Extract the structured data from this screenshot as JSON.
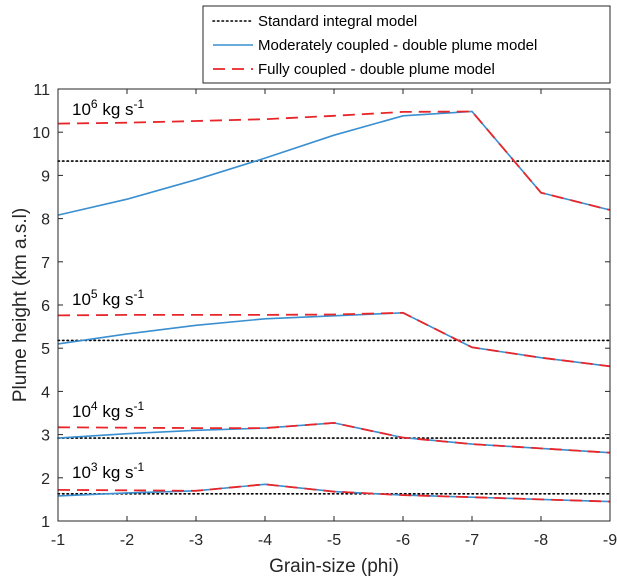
{
  "chart_data": {
    "type": "line",
    "xlabel": "Grain-size (phi)",
    "ylabel": "Plume height (km a.s.l)",
    "x": [
      -1,
      -2,
      -3,
      -4,
      -5,
      -6,
      -7,
      -8,
      -9
    ],
    "xlim": [
      -1,
      -9
    ],
    "ylim": [
      1,
      11
    ],
    "xticks": [
      "-1",
      "-2",
      "-3",
      "-4",
      "-5",
      "-6",
      "-7",
      "-8",
      "-9"
    ],
    "yticks": [
      "1",
      "2",
      "3",
      "4",
      "5",
      "6",
      "7",
      "8",
      "9",
      "10",
      "11"
    ],
    "grid": false,
    "legend_position": "top-right (outside axes)",
    "legend": [
      {
        "label": "Standard integral model",
        "color": "#000000",
        "style": "dotted"
      },
      {
        "label": "Moderately coupled - double plume model",
        "color": "#3a8fd0",
        "style": "solid"
      },
      {
        "label": "Fully coupled - double plume model",
        "color": "#e8262a",
        "style": "dashed"
      }
    ],
    "groups": [
      {
        "annotation": {
          "base": "10",
          "exp": "6",
          "unit": "kg s",
          "unit_exp": "-1"
        },
        "standard": [
          9.33,
          9.33,
          9.33,
          9.33,
          9.33,
          9.33,
          9.33,
          9.33,
          9.33
        ],
        "moderate": [
          8.08,
          8.45,
          8.9,
          9.4,
          9.93,
          10.38,
          10.48,
          8.6,
          8.2
        ],
        "full": [
          10.2,
          10.22,
          10.26,
          10.3,
          10.38,
          10.47,
          10.48,
          8.6,
          8.2
        ]
      },
      {
        "annotation": {
          "base": "10",
          "exp": "5",
          "unit": "kg s",
          "unit_exp": "-1"
        },
        "standard": [
          5.18,
          5.18,
          5.18,
          5.18,
          5.18,
          5.18,
          5.18,
          5.18,
          5.18
        ],
        "moderate": [
          5.1,
          5.33,
          5.53,
          5.68,
          5.75,
          5.82,
          5.02,
          4.78,
          4.58
        ],
        "full": [
          5.76,
          5.77,
          5.77,
          5.77,
          5.78,
          5.82,
          5.02,
          4.78,
          4.58
        ]
      },
      {
        "annotation": {
          "base": "10",
          "exp": "4",
          "unit": "kg s",
          "unit_exp": "-1"
        },
        "standard": [
          2.92,
          2.92,
          2.92,
          2.92,
          2.92,
          2.92,
          2.92,
          2.92,
          2.92
        ],
        "moderate": [
          2.92,
          3.02,
          3.1,
          3.15,
          3.27,
          2.93,
          2.78,
          2.68,
          2.58
        ],
        "full": [
          3.17,
          3.16,
          3.15,
          3.15,
          3.27,
          2.93,
          2.78,
          2.68,
          2.58
        ]
      },
      {
        "annotation": {
          "base": "10",
          "exp": "3",
          "unit": "kg s",
          "unit_exp": "-1"
        },
        "standard": [
          1.63,
          1.63,
          1.63,
          1.63,
          1.63,
          1.63,
          1.63,
          1.63,
          1.63
        ],
        "moderate": [
          1.58,
          1.65,
          1.7,
          1.85,
          1.68,
          1.6,
          1.55,
          1.5,
          1.45
        ],
        "full": [
          1.72,
          1.71,
          1.7,
          1.85,
          1.68,
          1.6,
          1.55,
          1.5,
          1.45
        ]
      }
    ]
  }
}
